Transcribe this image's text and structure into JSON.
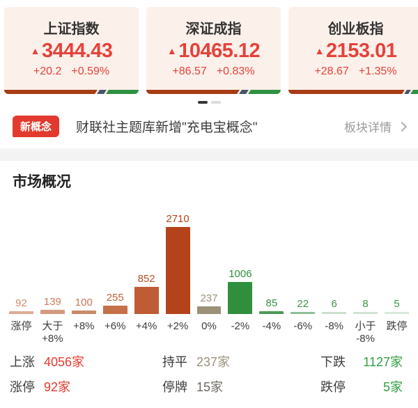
{
  "indices": {
    "up_arrow": "▲",
    "cards": [
      {
        "name": "上证指数",
        "value": "3444.43",
        "change": "+20.2",
        "change_pct": "+0.59%",
        "breadth_bar": {
          "up_pct": 71,
          "flat_pct": 5
        }
      },
      {
        "name": "深证成指",
        "value": "10465.12",
        "change": "+86.57",
        "change_pct": "+0.83%",
        "breadth_bar": {
          "up_pct": 71,
          "flat_pct": 5
        }
      },
      {
        "name": "创业板指",
        "value": "2153.01",
        "change": "+28.67",
        "change_pct": "+1.35%",
        "breadth_bar": {
          "up_pct": 88,
          "flat_pct": 3
        }
      }
    ],
    "bar_colors": {
      "up": "#a63c14",
      "flat": "#45566b",
      "down": "#2e9242"
    }
  },
  "carousel": {
    "page_count": 2,
    "active_page": 0
  },
  "news": {
    "badge": "新概念",
    "headline": "财联社主题库新增\"充电宝概念\"",
    "action": "板块详情",
    "chevron_icon": "chevron-right"
  },
  "section": {
    "title": "市场概况"
  },
  "chart_data": {
    "type": "bar",
    "title": "市场概况",
    "categories": [
      "涨停",
      "大于\n+8%",
      "+8%",
      "+6%",
      "+4%",
      "+2%",
      "0%",
      "-2%",
      "-4%",
      "-6%",
      "-8%",
      "小于\n-8%",
      "跌停"
    ],
    "values": [
      92,
      139,
      100,
      255,
      852,
      2710,
      237,
      1006,
      85,
      22,
      6,
      8,
      5
    ],
    "bar_colors": [
      "#dcab94",
      "#d29b80",
      "#ca8a6a",
      "#c57048",
      "#bf5c33",
      "#b4431b",
      "#9b9179",
      "#2f8f3d",
      "#4c9a58",
      "#8fbf97",
      "#c9dfcc",
      "#cfe3d2",
      "#d8e8da"
    ],
    "label_colors": [
      "#cf8a6d",
      "#cb7e5d",
      "#c67454",
      "#c0603a",
      "#bb5028",
      "#b4431b",
      "#9b9179",
      "#2f8f3d",
      "#3a9547",
      "#3a9547",
      "#3a9547",
      "#3a9547",
      "#3a9547"
    ],
    "xlabel": "",
    "ylabel": "",
    "ylim": [
      0,
      2710
    ],
    "grid": false,
    "legend": false,
    "data_labels_position": "above-bars"
  },
  "summary": {
    "rows": [
      [
        {
          "label": "上涨",
          "value": "4056家",
          "color": "#e23a2e"
        },
        {
          "label": "持平",
          "value": "237家",
          "color": "#9b9179"
        },
        {
          "label": "下跌",
          "value": "1127家",
          "color": "#2f9e42"
        }
      ],
      [
        {
          "label": "涨停",
          "value": "92家",
          "color": "#e23a2e"
        },
        {
          "label": "停牌",
          "value": "15家",
          "color": "#6e6a63"
        },
        {
          "label": "跌停",
          "value": "5家",
          "color": "#2f9e42"
        }
      ]
    ]
  }
}
